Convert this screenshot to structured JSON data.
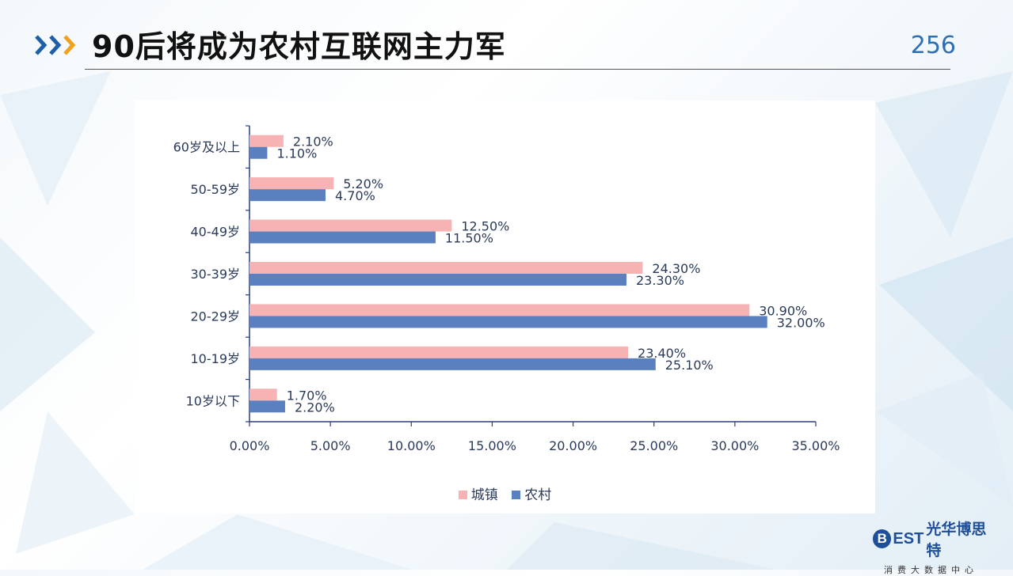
{
  "header": {
    "title": "90后将成为农村互联网主力军",
    "page_number": "256"
  },
  "logo": {
    "mark": "B",
    "brand_en": "EST",
    "brand_cn": "光华博思特",
    "tagline": "消费大数据中心"
  },
  "colors": {
    "urban": "#f7b2b4",
    "rural": "#5b80bf",
    "axis": "#2b3f7a",
    "text": "#2a3a5a",
    "accent_blue": "#1f5fa8",
    "accent_orange": "#f0a21f"
  },
  "chart_data": {
    "type": "bar",
    "orientation": "horizontal",
    "categories": [
      "60岁及以上",
      "50-59岁",
      "40-49岁",
      "30-39岁",
      "20-29岁",
      "10-19岁",
      "10岁以下"
    ],
    "series": [
      {
        "name": "城镇",
        "values": [
          2.1,
          5.2,
          12.5,
          24.3,
          30.9,
          23.4,
          1.7
        ],
        "labels": [
          "2.10%",
          "5.20%",
          "12.50%",
          "24.30%",
          "30.90%",
          "23.40%",
          "1.70%"
        ]
      },
      {
        "name": "农村",
        "values": [
          1.1,
          4.7,
          11.5,
          23.3,
          32.0,
          25.1,
          2.2
        ],
        "labels": [
          "1.10%",
          "4.70%",
          "11.50%",
          "23.30%",
          "32.00%",
          "25.10%",
          "2.20%"
        ]
      }
    ],
    "x_ticks": [
      "0.00%",
      "5.00%",
      "10.00%",
      "15.00%",
      "20.00%",
      "25.00%",
      "30.00%",
      "35.00%"
    ],
    "xlim": [
      0,
      35
    ],
    "grid": false,
    "legend_position": "bottom"
  }
}
